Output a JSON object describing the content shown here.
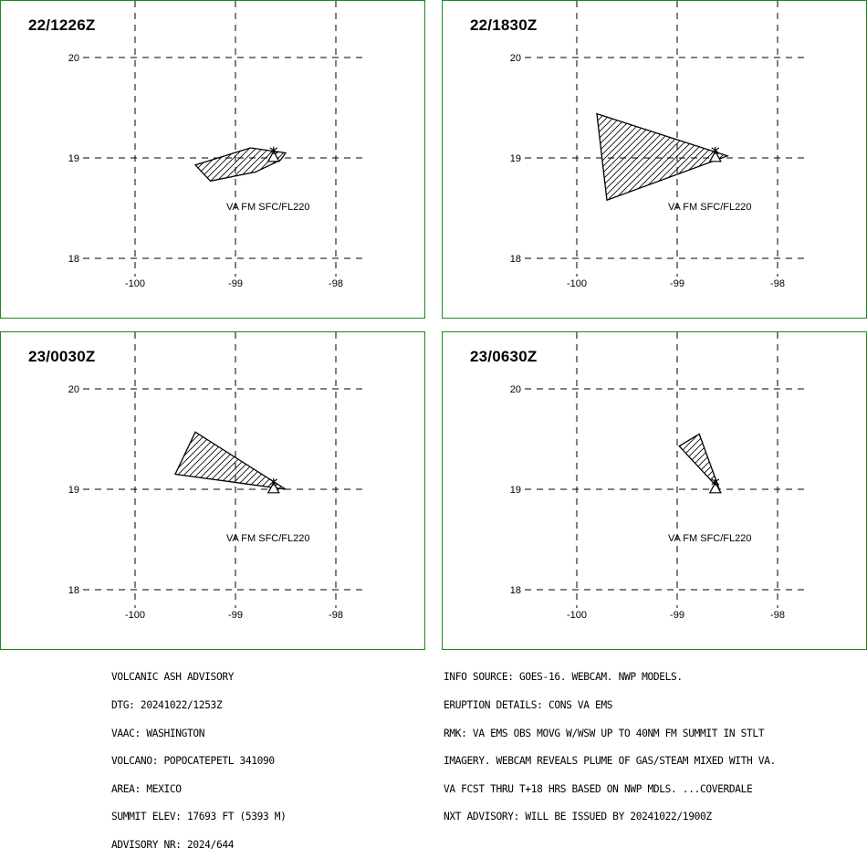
{
  "panels": [
    {
      "title": "22/1226Z",
      "label": "VA FM SFC/FL220",
      "polygon": [
        [
          -99.4,
          18.93
        ],
        [
          -98.85,
          19.1
        ],
        [
          -98.5,
          19.05
        ],
        [
          -98.55,
          18.98
        ],
        [
          -98.8,
          18.86
        ],
        [
          -99.25,
          18.77
        ]
      ]
    },
    {
      "title": "22/1830Z",
      "label": "VA FM SFC/FL220",
      "polygon": [
        [
          -99.8,
          19.44
        ],
        [
          -98.5,
          19.02
        ],
        [
          -99.7,
          18.58
        ]
      ]
    },
    {
      "title": "23/0030Z",
      "label": "VA FM SFC/FL220",
      "polygon": [
        [
          -99.4,
          19.57
        ],
        [
          -98.5,
          19.0
        ],
        [
          -99.6,
          19.15
        ]
      ]
    },
    {
      "title": "23/0630Z",
      "label": "VA FM SFC/FL220",
      "polygon": [
        [
          -98.98,
          19.43
        ],
        [
          -98.78,
          19.55
        ],
        [
          -98.58,
          19.0
        ]
      ]
    }
  ],
  "map_grid": {
    "lat_ticks": [
      "20",
      "19",
      "18"
    ],
    "lon_ticks": [
      "-100",
      "-99",
      "-98"
    ],
    "lat_values": [
      20,
      19,
      18
    ],
    "lon_values": [
      -100,
      -99,
      -98
    ]
  },
  "volcano": {
    "lon": -98.62,
    "lat": 19.02,
    "symbol": "volcano-triangle"
  },
  "colors": {
    "frame": "#1a8a1a",
    "ink": "#000000",
    "background": "#ffffff"
  },
  "advisory_left": [
    "VOLCANIC ASH ADVISORY",
    "DTG: 20241022/1253Z",
    "VAAC: WASHINGTON",
    "VOLCANO: POPOCATEPETL 341090",
    "AREA: MEXICO",
    "SUMMIT ELEV: 17693 FT (5393 M)",
    "ADVISORY NR: 2024/644"
  ],
  "advisory_right": [
    "INFO SOURCE: GOES-16. WEBCAM. NWP MODELS.",
    "ERUPTION DETAILS: CONS VA EMS",
    "RMK: VA EMS OBS MOVG W/WSW UP TO 40NM FM SUMMIT IN STLT",
    "IMAGERY. WEBCAM REVEALS PLUME OF GAS/STEAM MIXED WITH VA.",
    "VA FCST THRU T+18 HRS BASED ON NWP MDLS. ...COVERDALE",
    "NXT ADVISORY: WILL BE ISSUED BY 20241022/1900Z"
  ]
}
